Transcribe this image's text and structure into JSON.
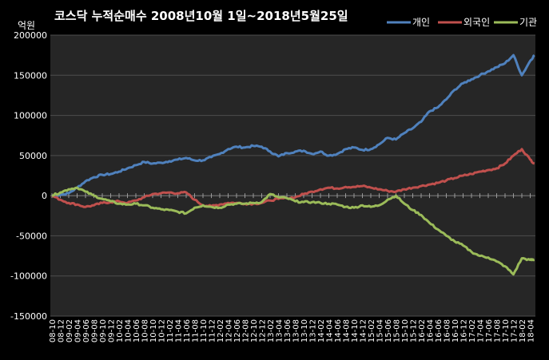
{
  "chart_data": {
    "type": "line",
    "title": "코스닥 누적순매수 2008년10월 1일~2018년5월25일",
    "unit_label": "억원",
    "ylim": [
      -150000,
      200000
    ],
    "yticks": [
      200000,
      150000,
      100000,
      50000,
      0,
      -50000,
      -100000,
      -150000
    ],
    "ytick_labels": [
      "200000",
      "150000",
      "100000",
      "50000",
      "0",
      "-50000",
      "-100000",
      "-150000"
    ],
    "xticks": [
      "08-10",
      "08-12",
      "09-02",
      "09-04",
      "09-06",
      "09-08",
      "09-10",
      "09-12",
      "10-02",
      "10-04",
      "10-06",
      "10-08",
      "10-10",
      "10-12",
      "11-02",
      "11-04",
      "11-06",
      "11-08",
      "11-10",
      "11-12",
      "12-02",
      "12-04",
      "12-06",
      "12-08",
      "12-10",
      "12-12",
      "13-02",
      "13-04",
      "13-06",
      "13-08",
      "13-10",
      "13-12",
      "14-02",
      "14-04",
      "14-06",
      "14-08",
      "14-10",
      "14-12",
      "15-02",
      "15-04",
      "15-06",
      "15-08",
      "15-10",
      "15-12",
      "16-02",
      "16-04",
      "16-06",
      "16-08",
      "16-10",
      "16-12",
      "17-02",
      "17-04",
      "17-06",
      "17-08",
      "17-10",
      "17-12",
      "18-02",
      "18-04"
    ],
    "legend_position": "top-right",
    "grid": "horizontal",
    "colors": {
      "background": "#000000",
      "plot_area": "#262626",
      "gridline": "#4d4d4d",
      "text": "#ffffff"
    },
    "series": [
      {
        "name": "개인",
        "color": "#4f81bd",
        "points": [
          [
            "08-10",
            0
          ],
          [
            "08-12",
            1000
          ],
          [
            "09-02",
            3000
          ],
          [
            "09-04",
            10000
          ],
          [
            "09-06",
            18000
          ],
          [
            "09-08",
            23000
          ],
          [
            "09-10",
            26000
          ],
          [
            "09-12",
            27000
          ],
          [
            "10-02",
            30000
          ],
          [
            "10-04",
            34000
          ],
          [
            "10-06",
            38000
          ],
          [
            "10-08",
            42000
          ],
          [
            "10-10",
            40000
          ],
          [
            "10-12",
            41000
          ],
          [
            "11-02",
            43000
          ],
          [
            "11-04",
            45000
          ],
          [
            "11-06",
            47000
          ],
          [
            "11-08",
            44000
          ],
          [
            "11-10",
            44000
          ],
          [
            "11-12",
            48000
          ],
          [
            "12-02",
            52000
          ],
          [
            "12-04",
            58000
          ],
          [
            "12-06",
            61000
          ],
          [
            "12-08",
            60000
          ],
          [
            "12-10",
            62000
          ],
          [
            "12-12",
            61000
          ],
          [
            "13-02",
            55000
          ],
          [
            "13-04",
            49000
          ],
          [
            "13-06",
            53000
          ],
          [
            "13-08",
            55000
          ],
          [
            "13-10",
            56000
          ],
          [
            "13-12",
            52000
          ],
          [
            "14-02",
            55000
          ],
          [
            "14-04",
            50000
          ],
          [
            "14-06",
            52000
          ],
          [
            "14-08",
            58000
          ],
          [
            "14-10",
            60000
          ],
          [
            "14-12",
            57000
          ],
          [
            "15-02",
            58000
          ],
          [
            "15-04",
            64000
          ],
          [
            "15-06",
            72000
          ],
          [
            "15-08",
            70000
          ],
          [
            "15-10",
            78000
          ],
          [
            "15-12",
            84000
          ],
          [
            "16-02",
            92000
          ],
          [
            "16-04",
            105000
          ],
          [
            "16-06",
            110000
          ],
          [
            "16-08",
            120000
          ],
          [
            "16-10",
            132000
          ],
          [
            "16-12",
            140000
          ],
          [
            "17-02",
            145000
          ],
          [
            "17-04",
            150000
          ],
          [
            "17-06",
            155000
          ],
          [
            "17-08",
            160000
          ],
          [
            "17-10",
            165000
          ],
          [
            "17-12",
            175000
          ],
          [
            "18-02",
            150000
          ],
          [
            "18-04",
            168000
          ],
          [
            "18-05",
            175000
          ]
        ]
      },
      {
        "name": "외국인",
        "color": "#c0504d",
        "points": [
          [
            "08-10",
            0
          ],
          [
            "08-12",
            -5000
          ],
          [
            "09-02",
            -9000
          ],
          [
            "09-04",
            -11000
          ],
          [
            "09-06",
            -14000
          ],
          [
            "09-08",
            -12000
          ],
          [
            "09-10",
            -9000
          ],
          [
            "09-12",
            -8000
          ],
          [
            "10-02",
            -7000
          ],
          [
            "10-04",
            -9000
          ],
          [
            "10-06",
            -6000
          ],
          [
            "10-08",
            -2000
          ],
          [
            "10-10",
            2000
          ],
          [
            "10-12",
            3000
          ],
          [
            "11-02",
            4000
          ],
          [
            "11-04",
            3000
          ],
          [
            "11-06",
            4000
          ],
          [
            "11-08",
            -5000
          ],
          [
            "11-10",
            -12000
          ],
          [
            "11-12",
            -13000
          ],
          [
            "12-02",
            -11000
          ],
          [
            "12-04",
            -9000
          ],
          [
            "12-06",
            -9000
          ],
          [
            "12-08",
            -10000
          ],
          [
            "12-10",
            -10000
          ],
          [
            "12-12",
            -9000
          ],
          [
            "13-02",
            -6000
          ],
          [
            "13-04",
            -4000
          ],
          [
            "13-06",
            -3000
          ],
          [
            "13-08",
            -2000
          ],
          [
            "13-10",
            2000
          ],
          [
            "13-12",
            5000
          ],
          [
            "14-02",
            8000
          ],
          [
            "14-04",
            10000
          ],
          [
            "14-06",
            9000
          ],
          [
            "14-08",
            11000
          ],
          [
            "14-10",
            11000
          ],
          [
            "14-12",
            12000
          ],
          [
            "15-02",
            10000
          ],
          [
            "15-04",
            8000
          ],
          [
            "15-06",
            6000
          ],
          [
            "15-08",
            5000
          ],
          [
            "15-10",
            8000
          ],
          [
            "15-12",
            10000
          ],
          [
            "16-02",
            12000
          ],
          [
            "16-04",
            14000
          ],
          [
            "16-06",
            16000
          ],
          [
            "16-08",
            19000
          ],
          [
            "16-10",
            22000
          ],
          [
            "16-12",
            25000
          ],
          [
            "17-02",
            27000
          ],
          [
            "17-04",
            30000
          ],
          [
            "17-06",
            32000
          ],
          [
            "17-08",
            34000
          ],
          [
            "17-10",
            40000
          ],
          [
            "17-12",
            50000
          ],
          [
            "18-02",
            58000
          ],
          [
            "18-04",
            45000
          ],
          [
            "18-05",
            40000
          ]
        ]
      },
      {
        "name": "기관",
        "color": "#9bbb59",
        "points": [
          [
            "08-10",
            0
          ],
          [
            "08-12",
            4000
          ],
          [
            "09-02",
            8000
          ],
          [
            "09-04",
            10000
          ],
          [
            "09-06",
            5000
          ],
          [
            "09-08",
            0
          ],
          [
            "09-10",
            -4000
          ],
          [
            "09-12",
            -7000
          ],
          [
            "10-02",
            -10000
          ],
          [
            "10-04",
            -11000
          ],
          [
            "10-06",
            -10000
          ],
          [
            "10-08",
            -12000
          ],
          [
            "10-10",
            -15000
          ],
          [
            "10-12",
            -17000
          ],
          [
            "11-02",
            -18000
          ],
          [
            "11-04",
            -20000
          ],
          [
            "11-06",
            -22000
          ],
          [
            "11-08",
            -15000
          ],
          [
            "11-10",
            -12000
          ],
          [
            "11-12",
            -14000
          ],
          [
            "12-02",
            -15000
          ],
          [
            "12-04",
            -11000
          ],
          [
            "12-06",
            -10000
          ],
          [
            "12-08",
            -10000
          ],
          [
            "12-10",
            -9000
          ],
          [
            "12-12",
            -8000
          ],
          [
            "13-02",
            2000
          ],
          [
            "13-04",
            -2000
          ],
          [
            "13-06",
            -3000
          ],
          [
            "13-08",
            -7000
          ],
          [
            "13-10",
            -8000
          ],
          [
            "13-12",
            -8000
          ],
          [
            "14-02",
            -9000
          ],
          [
            "14-04",
            -10000
          ],
          [
            "14-06",
            -11000
          ],
          [
            "14-08",
            -14000
          ],
          [
            "14-10",
            -15000
          ],
          [
            "14-12",
            -12000
          ],
          [
            "15-02",
            -14000
          ],
          [
            "15-04",
            -12000
          ],
          [
            "15-06",
            -5000
          ],
          [
            "15-08",
            0
          ],
          [
            "15-10",
            -10000
          ],
          [
            "15-12",
            -18000
          ],
          [
            "16-02",
            -24000
          ],
          [
            "16-04",
            -34000
          ],
          [
            "16-06",
            -42000
          ],
          [
            "16-08",
            -50000
          ],
          [
            "16-10",
            -57000
          ],
          [
            "16-12",
            -62000
          ],
          [
            "17-02",
            -70000
          ],
          [
            "17-04",
            -75000
          ],
          [
            "17-06",
            -77000
          ],
          [
            "17-08",
            -82000
          ],
          [
            "17-10",
            -88000
          ],
          [
            "17-12",
            -98000
          ],
          [
            "18-02",
            -78000
          ],
          [
            "18-04",
            -80000
          ],
          [
            "18-05",
            -80000
          ]
        ]
      }
    ]
  }
}
